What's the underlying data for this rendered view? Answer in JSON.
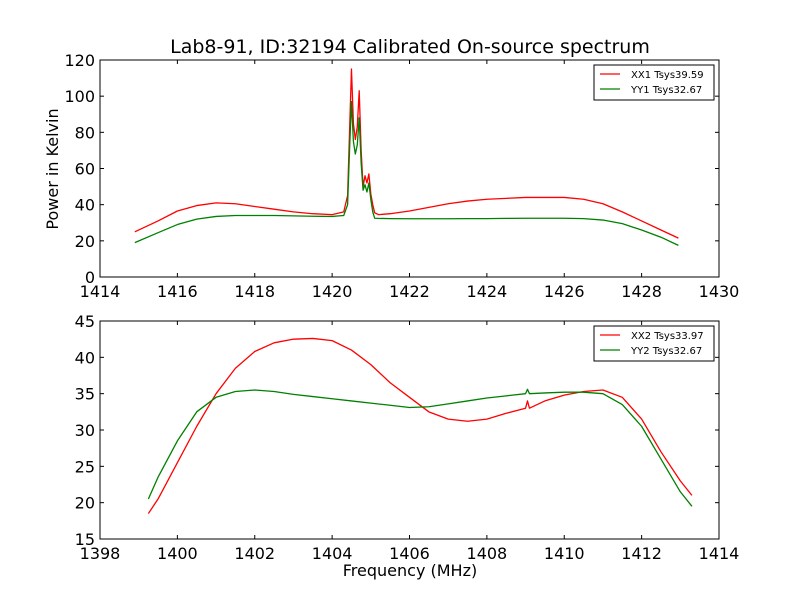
{
  "chart_data": [
    {
      "type": "line",
      "title": "Lab8-91, ID:32194 Calibrated On-source spectrum",
      "xlabel": "",
      "ylabel": "Power in Kelvin",
      "xlim": [
        1414,
        1430
      ],
      "ylim": [
        0,
        120
      ],
      "xticks": [
        "1414",
        "1416",
        "1418",
        "1420",
        "1422",
        "1424",
        "1426",
        "1428",
        "1430"
      ],
      "yticks": [
        "0",
        "20",
        "40",
        "60",
        "80",
        "100",
        "120"
      ],
      "grid": false,
      "legend_position": "top-right",
      "series": [
        {
          "name": "XX1 Tsys39.59",
          "color": "#ff0000",
          "x": [
            1414.9,
            1415.5,
            1416.0,
            1416.5,
            1417.0,
            1417.5,
            1418.0,
            1418.5,
            1419.0,
            1419.5,
            1420.0,
            1420.3,
            1420.4,
            1420.45,
            1420.5,
            1420.55,
            1420.6,
            1420.65,
            1420.7,
            1420.75,
            1420.8,
            1420.85,
            1420.9,
            1420.95,
            1421.0,
            1421.05,
            1421.1,
            1421.2,
            1421.5,
            1422.0,
            1422.5,
            1423.0,
            1423.5,
            1424.0,
            1424.5,
            1425.0,
            1425.5,
            1426.0,
            1426.5,
            1427.0,
            1427.5,
            1428.0,
            1428.5,
            1428.95
          ],
          "values": [
            25,
            31,
            36.5,
            39.5,
            41,
            40.5,
            39,
            37.5,
            36,
            35,
            34.5,
            36,
            45,
            80,
            115,
            85,
            76,
            83,
            103,
            70,
            50,
            56,
            52,
            57,
            46,
            40,
            35.5,
            34.5,
            35,
            36.5,
            38.5,
            40.5,
            42,
            43,
            43.5,
            44,
            44,
            44,
            43,
            40.5,
            36,
            31,
            26,
            21.5
          ]
        },
        {
          "name": "YY1 Tsys32.67",
          "color": "#008000",
          "x": [
            1414.9,
            1415.5,
            1416.0,
            1416.5,
            1417.0,
            1417.5,
            1418.0,
            1418.5,
            1419.0,
            1419.5,
            1420.0,
            1420.3,
            1420.4,
            1420.45,
            1420.5,
            1420.55,
            1420.6,
            1420.65,
            1420.7,
            1420.75,
            1420.8,
            1420.85,
            1420.9,
            1420.95,
            1421.0,
            1421.05,
            1421.1,
            1421.2,
            1421.5,
            1422.0,
            1422.5,
            1423.0,
            1423.5,
            1424.0,
            1424.5,
            1425.0,
            1425.5,
            1426.0,
            1426.5,
            1427.0,
            1427.5,
            1428.0,
            1428.5,
            1428.95
          ],
          "values": [
            19,
            24.5,
            29,
            32,
            33.5,
            34,
            34,
            34,
            33.8,
            33.6,
            33.5,
            34,
            40,
            70,
            97,
            75,
            68,
            73,
            88,
            63,
            48,
            51,
            47,
            52,
            43,
            36,
            32.5,
            32.4,
            32.3,
            32.2,
            32.2,
            32.2,
            32.3,
            32.3,
            32.4,
            32.5,
            32.5,
            32.5,
            32.3,
            31.5,
            29.5,
            26,
            22,
            17.5
          ]
        }
      ]
    },
    {
      "type": "line",
      "title": "",
      "xlabel": "Frequency (MHz)",
      "ylabel": "",
      "xlim": [
        1398,
        1414
      ],
      "ylim": [
        15,
        45
      ],
      "xticks": [
        "1398",
        "1400",
        "1402",
        "1404",
        "1406",
        "1408",
        "1410",
        "1412",
        "1414"
      ],
      "yticks": [
        "15",
        "20",
        "25",
        "30",
        "35",
        "40",
        "45"
      ],
      "grid": false,
      "legend_position": "top-right",
      "series": [
        {
          "name": "XX2 Tsys33.97",
          "color": "#ff0000",
          "x": [
            1399.25,
            1399.5,
            1400.0,
            1400.5,
            1401.0,
            1401.5,
            1402.0,
            1402.5,
            1403.0,
            1403.5,
            1404.0,
            1404.5,
            1405.0,
            1405.5,
            1406.0,
            1406.5,
            1407.0,
            1407.5,
            1408.0,
            1408.5,
            1409.0,
            1409.05,
            1409.1,
            1409.5,
            1410.0,
            1410.5,
            1411.0,
            1411.5,
            1412.0,
            1412.5,
            1413.0,
            1413.3
          ],
          "values": [
            18.5,
            20.5,
            25.5,
            30.5,
            35,
            38.5,
            40.8,
            42,
            42.5,
            42.6,
            42.3,
            41,
            39,
            36.5,
            34.5,
            32.5,
            31.5,
            31.2,
            31.5,
            32.3,
            33,
            34,
            33,
            34,
            34.8,
            35.3,
            35.5,
            34.5,
            31.5,
            27,
            23,
            21
          ]
        },
        {
          "name": "YY2 Tsys32.67",
          "color": "#008000",
          "x": [
            1399.25,
            1399.5,
            1400.0,
            1400.5,
            1401.0,
            1401.5,
            1402.0,
            1402.5,
            1403.0,
            1403.5,
            1404.0,
            1404.5,
            1405.0,
            1405.5,
            1406.0,
            1406.5,
            1407.0,
            1407.5,
            1408.0,
            1408.5,
            1409.0,
            1409.05,
            1409.1,
            1409.5,
            1410.0,
            1410.5,
            1411.0,
            1411.5,
            1412.0,
            1412.5,
            1413.0,
            1413.3
          ],
          "values": [
            20.5,
            23.5,
            28.5,
            32.5,
            34.5,
            35.3,
            35.5,
            35.3,
            34.9,
            34.6,
            34.3,
            34,
            33.7,
            33.4,
            33.1,
            33.2,
            33.6,
            34,
            34.4,
            34.7,
            35,
            35.6,
            35,
            35.1,
            35.2,
            35.2,
            35,
            33.5,
            30.5,
            26,
            21.5,
            19.5
          ]
        }
      ]
    }
  ]
}
